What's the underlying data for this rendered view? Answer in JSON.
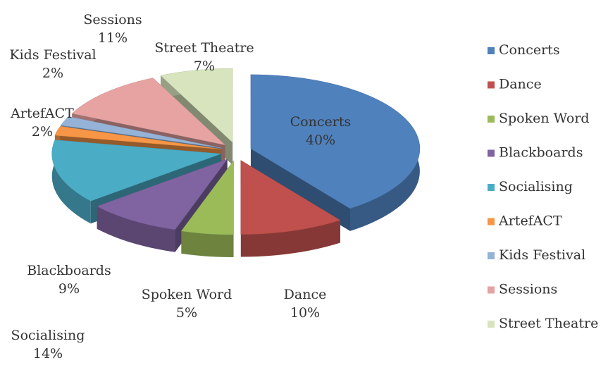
{
  "chart_data": {
    "type": "pie",
    "categories": [
      "Concerts",
      "Dance",
      "Spoken Word",
      "Blackboards",
      "Socialising",
      "ArtefACT",
      "Kids Festival",
      "Sessions",
      "Street Theatre"
    ],
    "values": [
      40,
      10,
      5,
      9,
      14,
      2,
      2,
      11,
      7
    ],
    "value_labels": [
      "40%",
      "10%",
      "5%",
      "9%",
      "14%",
      "2%",
      "2%",
      "11%",
      "7%"
    ],
    "colors": [
      "#4f81bd",
      "#c0504d",
      "#9bbb59",
      "#8064a2",
      "#4bacc6",
      "#f79646",
      "#95b3d7",
      "#e6a3a2",
      "#d7e4bd"
    ],
    "legend": "right"
  }
}
